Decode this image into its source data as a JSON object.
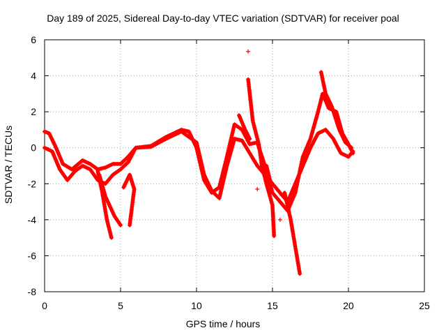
{
  "chart_data": {
    "type": "scatter",
    "title": "Day 189 of 2025, Sidereal Day-to-day VTEC variation (SDTVAR) for receiver poal",
    "xlabel": "GPS time / hours",
    "ylabel": "SDTVAR / TECUs",
    "xlim": [
      0,
      25
    ],
    "ylim": [
      -8,
      6
    ],
    "xticks": [
      "0",
      "5",
      "10",
      "15",
      "20",
      "25"
    ],
    "yticks": [
      "-8",
      "-6",
      "-4",
      "-2",
      "0",
      "2",
      "4",
      "6"
    ],
    "grid": true,
    "marker": "+",
    "color": "#ff0000",
    "series": [
      {
        "name": "SDTVAR",
        "trace_a": [
          [
            0,
            0.9
          ],
          [
            0.3,
            0.8
          ],
          [
            0.7,
            0.1
          ],
          [
            1.2,
            -0.9
          ],
          [
            1.8,
            -1.2
          ],
          [
            2.5,
            -0.7
          ],
          [
            3.0,
            -0.9
          ],
          [
            3.5,
            -1.2
          ],
          [
            4.0,
            -1.1
          ],
          [
            4.5,
            -0.9
          ],
          [
            5.0,
            -0.9
          ],
          [
            5.5,
            -0.5
          ],
          [
            6.0,
            0.0
          ],
          [
            7.0,
            0.1
          ],
          [
            8.0,
            0.6
          ],
          [
            8.5,
            0.8
          ],
          [
            9.0,
            1.0
          ],
          [
            9.5,
            0.9
          ],
          [
            10.0,
            0.0
          ],
          [
            10.5,
            -1.8
          ],
          [
            11.0,
            -2.5
          ],
          [
            11.5,
            -2.2
          ],
          [
            12.0,
            -0.5
          ],
          [
            12.5,
            1.3
          ],
          [
            13.0,
            1.0
          ],
          [
            13.5,
            0.2
          ],
          [
            14.0,
            0.3
          ],
          [
            14.5,
            -1.0
          ],
          [
            15.0,
            -2.5
          ],
          [
            15.5,
            -3.0
          ],
          [
            16.0,
            -3.5
          ],
          [
            16.5,
            -2.5
          ],
          [
            17.0,
            -0.5
          ],
          [
            17.5,
            0.5
          ],
          [
            18.0,
            2.0
          ],
          [
            18.3,
            3.0
          ],
          [
            18.7,
            2.2
          ],
          [
            19.2,
            2.0
          ],
          [
            19.6,
            0.8
          ],
          [
            20.0,
            0.2
          ],
          [
            20.3,
            -0.3
          ]
        ],
        "trace_b": [
          [
            0,
            0.0
          ],
          [
            0.5,
            -0.2
          ],
          [
            1.0,
            -1.2
          ],
          [
            1.5,
            -1.8
          ],
          [
            2.0,
            -1.3
          ],
          [
            2.5,
            -1.0
          ],
          [
            3.0,
            -1.2
          ],
          [
            3.5,
            -1.8
          ],
          [
            4.0,
            -2.0
          ],
          [
            4.5,
            -1.5
          ],
          [
            5.0,
            -1.2
          ],
          [
            5.5,
            -0.8
          ],
          [
            6.0,
            0.0
          ],
          [
            7.0,
            0.05
          ],
          [
            8.0,
            0.5
          ],
          [
            9.0,
            0.9
          ],
          [
            10.0,
            0.3
          ],
          [
            10.5,
            -1.5
          ],
          [
            11.0,
            -2.4
          ],
          [
            11.5,
            -2.8
          ],
          [
            12.0,
            -1.0
          ],
          [
            12.5,
            0.5
          ],
          [
            13.0,
            0.4
          ],
          [
            13.5,
            -0.3
          ],
          [
            14.0,
            -1.0
          ],
          [
            14.5,
            -1.5
          ],
          [
            15.0,
            -2.0
          ],
          [
            15.5,
            -2.5
          ],
          [
            16.0,
            -3.0
          ],
          [
            16.5,
            -2.0
          ],
          [
            17.0,
            -1.0
          ],
          [
            17.5,
            0.0
          ],
          [
            18.0,
            0.8
          ],
          [
            18.5,
            1.0
          ],
          [
            19.0,
            0.5
          ],
          [
            19.5,
            -0.3
          ],
          [
            20.0,
            -0.5
          ],
          [
            20.3,
            -0.2
          ]
        ],
        "branches": [
          [
            [
              3.5,
              -1.3
            ],
            [
              3.8,
              -2.5
            ],
            [
              4.1,
              -4.0
            ],
            [
              4.4,
              -5.0
            ]
          ],
          [
            [
              3.6,
              -1.5
            ],
            [
              4.0,
              -2.7
            ],
            [
              4.6,
              -3.8
            ],
            [
              5.0,
              -4.3
            ]
          ],
          [
            [
              5.2,
              -2.2
            ],
            [
              5.6,
              -1.5
            ],
            [
              5.9,
              -2.3
            ],
            [
              5.6,
              -4.3
            ]
          ],
          [
            [
              13.4,
              3.8
            ],
            [
              13.7,
              1.5
            ],
            [
              14.1,
              0.2
            ],
            [
              14.3,
              -1.0
            ],
            [
              14.6,
              -2.0
            ],
            [
              15.0,
              -3.2
            ],
            [
              15.1,
              -4.9
            ]
          ],
          [
            [
              15.8,
              -2.5
            ],
            [
              16.2,
              -4.0
            ],
            [
              16.5,
              -5.5
            ],
            [
              16.8,
              -7.0
            ]
          ],
          [
            [
              18.2,
              4.2
            ],
            [
              18.5,
              3.0
            ],
            [
              18.9,
              2.3
            ],
            [
              19.4,
              1.0
            ],
            [
              19.8,
              0.3
            ],
            [
              20.2,
              0.0
            ]
          ],
          [
            [
              12.8,
              1.8
            ],
            [
              13.2,
              1.0
            ],
            [
              13.5,
              0.5
            ]
          ],
          [
            [
              14.6,
              -1.0
            ],
            [
              14.9,
              -2.0
            ]
          ]
        ],
        "isolated": [
          [
            13.4,
            5.35
          ],
          [
            14.0,
            -2.3
          ],
          [
            15.5,
            -4.0
          ]
        ]
      }
    ]
  }
}
